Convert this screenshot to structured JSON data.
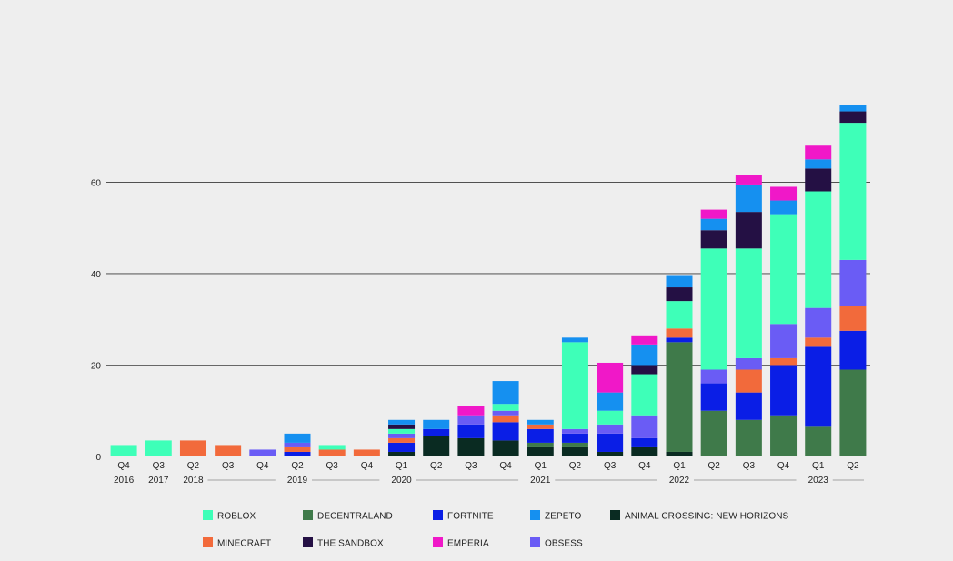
{
  "chart_data": {
    "type": "bar",
    "stacked": true,
    "categories": [
      "Q4",
      "Q3",
      "Q2",
      "Q3",
      "Q4",
      "Q2",
      "Q3",
      "Q4",
      "Q1",
      "Q2",
      "Q3",
      "Q4",
      "Q1",
      "Q2",
      "Q3",
      "Q4",
      "Q1",
      "Q2",
      "Q3",
      "Q4",
      "Q1",
      "Q2"
    ],
    "year_labels": [
      {
        "label": "2016",
        "index": 0
      },
      {
        "label": "2017",
        "index": 1
      },
      {
        "label": "2018",
        "index": 2
      },
      {
        "label": "2019",
        "index": 5
      },
      {
        "label": "2020",
        "index": 8
      },
      {
        "label": "2021",
        "index": 12
      },
      {
        "label": "2022",
        "index": 16
      },
      {
        "label": "2023",
        "index": 20
      }
    ],
    "y_ticks": [
      0,
      20,
      40,
      60
    ],
    "ylim": [
      0,
      77
    ],
    "grid": true,
    "legend_position": "bottom",
    "series": [
      {
        "name": "ANIMAL CROSSING: NEW HORIZONS",
        "color": "#0a2b22",
        "values": [
          0,
          0,
          0,
          0,
          0,
          0,
          0,
          0,
          1,
          4.5,
          4,
          3.5,
          2,
          2,
          1,
          2,
          1,
          0,
          0,
          0,
          0,
          0
        ]
      },
      {
        "name": "DECENTRALAND",
        "color": "#3f7a4a",
        "values": [
          0,
          0,
          0,
          0,
          0,
          0,
          0,
          0,
          0,
          0,
          0,
          0,
          1,
          1,
          0,
          0,
          24,
          10,
          8,
          9,
          6.5,
          19
        ]
      },
      {
        "name": "FORTNITE",
        "color": "#0a1ee6",
        "values": [
          0,
          0,
          0,
          0,
          0,
          1,
          0,
          0,
          2,
          1.5,
          3,
          4,
          3,
          2,
          4,
          2,
          1,
          6,
          6,
          11,
          17.5,
          8.5
        ]
      },
      {
        "name": "MINECRAFT",
        "color": "#f26a3b",
        "values": [
          0,
          0,
          3.5,
          2.5,
          0,
          1,
          1.5,
          1.5,
          1,
          0,
          0,
          1.5,
          1,
          0,
          0,
          0,
          2,
          0,
          5,
          1.5,
          2,
          5.5
        ]
      },
      {
        "name": "OBSESS",
        "color": "#6a5cf5",
        "values": [
          0,
          0,
          0,
          0,
          1.5,
          1,
          0,
          0,
          1,
          0,
          2,
          1,
          0,
          1,
          2,
          5,
          0,
          3,
          2.5,
          7.5,
          6.5,
          10
        ]
      },
      {
        "name": "ROBLOX",
        "color": "#3effb8",
        "values": [
          2.5,
          3.5,
          0,
          0,
          0,
          0,
          1,
          0,
          1,
          0,
          0,
          1.5,
          0,
          19,
          3,
          9,
          6,
          26.5,
          24,
          24,
          25.5,
          30
        ]
      },
      {
        "name": "THE SANDBOX",
        "color": "#241044",
        "values": [
          0,
          0,
          0,
          0,
          0,
          0,
          0,
          0,
          1,
          0,
          0,
          0,
          0,
          0,
          0,
          2,
          3,
          4,
          8,
          0,
          5,
          2.5
        ]
      },
      {
        "name": "ZEPETO",
        "color": "#1590f0",
        "values": [
          0,
          0,
          0,
          0,
          0,
          2,
          0,
          0,
          1,
          2,
          0,
          5,
          1,
          1,
          4,
          4.5,
          2.5,
          2.5,
          6,
          3,
          2,
          1.5
        ]
      },
      {
        "name": "EMPERIA",
        "color": "#f018c8",
        "values": [
          0,
          0,
          0,
          0,
          0,
          0,
          0,
          0,
          0,
          0,
          2,
          0,
          0,
          0,
          6.5,
          2,
          0,
          2,
          2,
          3,
          3,
          0
        ]
      }
    ],
    "legend_order": [
      [
        "ROBLOX",
        "DECENTRALAND",
        "FORTNITE",
        "ZEPETO",
        "ANIMAL CROSSING: NEW HORIZONS"
      ],
      [
        "MINECRAFT",
        "THE SANDBOX",
        "EMPERIA",
        "OBSESS"
      ]
    ]
  }
}
